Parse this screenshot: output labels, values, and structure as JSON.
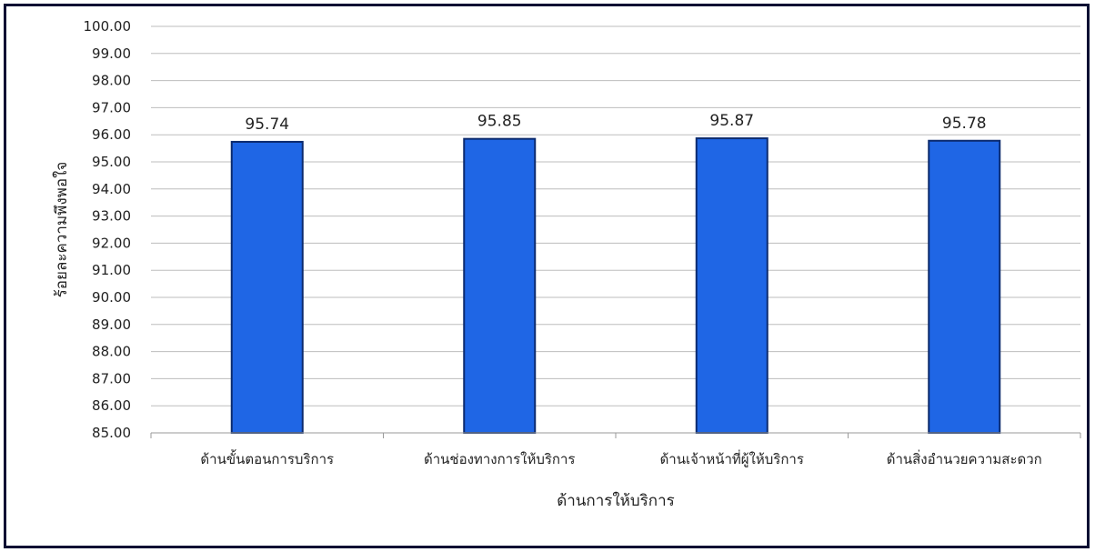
{
  "chart_data": {
    "type": "bar",
    "title": "",
    "xlabel": "ด้านการให้บริการ",
    "ylabel": "ร้อยละความพึงพอใจ",
    "categories": [
      "ด้านขั้นตอนการบริการ",
      "ด้านช่องทางการให้บริการ",
      "ด้านเจ้าหน้าที่ผู้ให้บริการ",
      "ด้านสิ่งอำนวยความสะดวก"
    ],
    "values": [
      95.74,
      95.85,
      95.87,
      95.78
    ],
    "value_labels": [
      "95.74",
      "95.85",
      "95.87",
      "95.78"
    ],
    "ylim": [
      85,
      100
    ],
    "yticks": [
      "85.00",
      "86.00",
      "87.00",
      "88.00",
      "89.00",
      "90.00",
      "91.00",
      "92.00",
      "93.00",
      "94.00",
      "95.00",
      "96.00",
      "97.00",
      "98.00",
      "99.00",
      "100.00"
    ],
    "grid": true,
    "legend": "none",
    "bar_color": "#1f66e5",
    "bar_edge_color": "#0b2a6e"
  }
}
